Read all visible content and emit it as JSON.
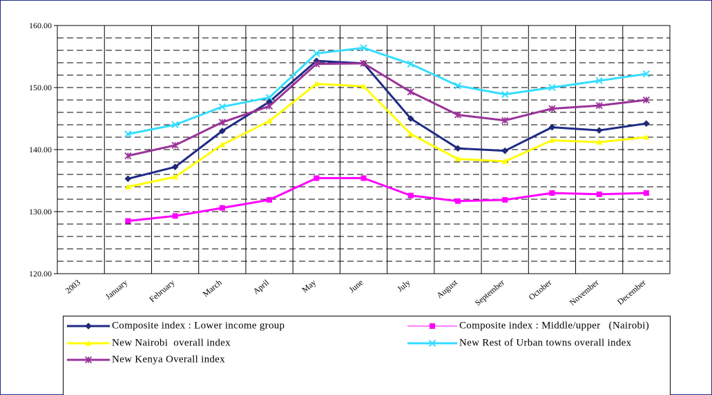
{
  "chart_data": {
    "type": "line",
    "categories": [
      "2003",
      "January",
      "February",
      "March",
      "April",
      "May",
      "June",
      "July",
      "August",
      "September",
      "October",
      "November",
      "December"
    ],
    "series": [
      {
        "name": "Composite index : Lower income group",
        "color": "#1f2a86",
        "marker": "diamond",
        "values": [
          null,
          135.3,
          137.2,
          143.0,
          147.7,
          154.3,
          153.9,
          145.0,
          140.2,
          139.8,
          143.6,
          143.1,
          144.2
        ]
      },
      {
        "name": "Composite index : Middle/upper   (Nairobi)",
        "color": "#ff00ff",
        "marker": "square",
        "values": [
          null,
          128.5,
          129.3,
          130.6,
          131.9,
          135.4,
          135.4,
          132.6,
          131.7,
          131.9,
          133.0,
          132.8,
          133.0
        ]
      },
      {
        "name": "New Nairobi  overall index",
        "color": "#ffff00",
        "marker": "triangle",
        "values": [
          null,
          134.0,
          135.6,
          140.8,
          144.6,
          150.6,
          150.2,
          142.5,
          138.5,
          138.1,
          141.5,
          141.2,
          142.0
        ]
      },
      {
        "name": "New Rest of Urban towns overall index",
        "color": "#33ddff",
        "marker": "x",
        "values": [
          null,
          142.5,
          144.0,
          146.9,
          148.4,
          155.5,
          156.4,
          153.8,
          150.3,
          148.9,
          150.0,
          151.1,
          152.2
        ]
      },
      {
        "name": "New Kenya Overall index",
        "color": "#993399",
        "marker": "star",
        "values": [
          null,
          139.0,
          140.7,
          144.4,
          147.0,
          153.8,
          153.9,
          149.3,
          145.6,
          144.7,
          146.6,
          147.1,
          148.0
        ]
      }
    ],
    "ylim": [
      120,
      160
    ],
    "yticks": [
      {
        "value": 120,
        "label": "120.00"
      },
      {
        "value": 130,
        "label": "130.00"
      },
      {
        "value": 140,
        "label": "140.00"
      },
      {
        "value": 150,
        "label": "150.00"
      },
      {
        "value": 160,
        "label": "160.00"
      }
    ],
    "minor_yticks": [
      122,
      124,
      126,
      128,
      130,
      132,
      134,
      136,
      138,
      140,
      142,
      144,
      146,
      148,
      150,
      152,
      154,
      156,
      158
    ],
    "grid": true
  }
}
